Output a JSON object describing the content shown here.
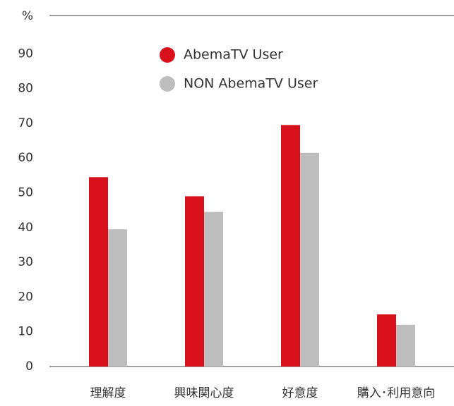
{
  "chart_data": {
    "type": "bar",
    "categories": [
      "理解度",
      "興味関心度",
      "好意度",
      "購入･利用意向"
    ],
    "series": [
      {
        "name": "AbemaTV User",
        "color": "#d7101c",
        "values": [
          54.5,
          49,
          69.5,
          15
        ]
      },
      {
        "name": "NON AbemaTV User",
        "color": "#bdbdbd",
        "values": [
          39.5,
          44.5,
          61.5,
          12
        ]
      }
    ],
    "ylim": [
      0,
      100
    ],
    "yticks": [
      0,
      10,
      20,
      30,
      40,
      50,
      60,
      70,
      80,
      90,
      {
        "value": 100,
        "label": "%"
      }
    ],
    "grid": false
  }
}
